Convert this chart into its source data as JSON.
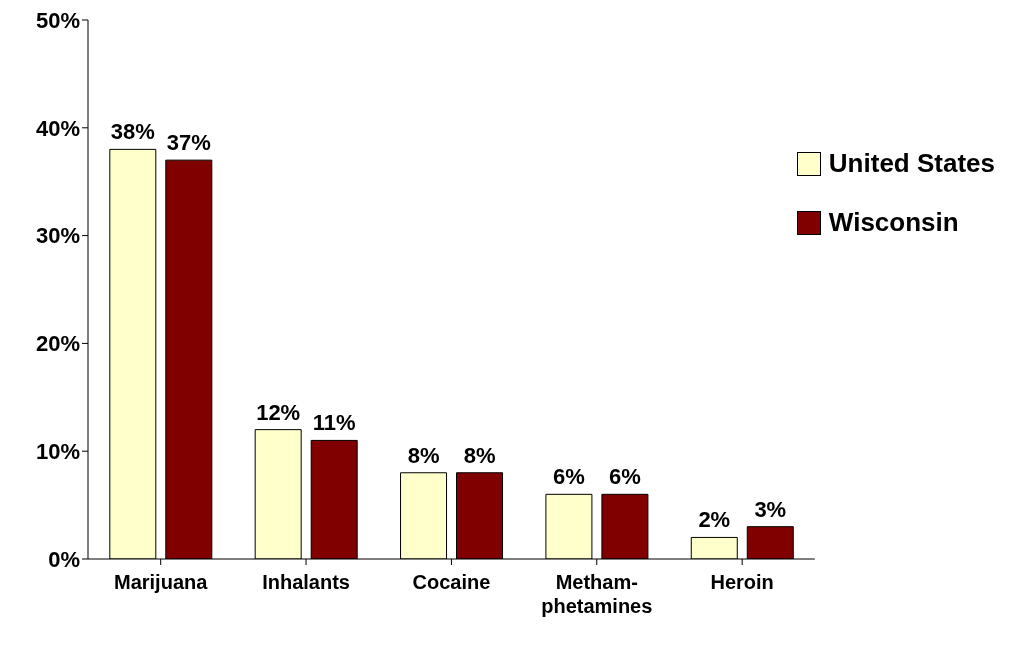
{
  "chart_data": {
    "type": "bar",
    "categories": [
      "Marijuana",
      "Inhalants",
      "Cocaine",
      "Metham-phetamines",
      "Heroin"
    ],
    "series": [
      {
        "name": "United States",
        "color": "#ffffcc",
        "values": [
          38,
          12,
          8,
          6,
          2
        ],
        "value_labels": [
          "38%",
          "12%",
          "8%",
          "6%",
          "2%"
        ]
      },
      {
        "name": "Wisconsin",
        "color": "#800000",
        "values": [
          37,
          11,
          8,
          6,
          3
        ],
        "value_labels": [
          "37%",
          "11%",
          "8%",
          "6%",
          "3%"
        ]
      }
    ],
    "ylim": [
      0,
      50
    ],
    "yticks": [
      {
        "value": 0,
        "label": "0%"
      },
      {
        "value": 10,
        "label": "10%"
      },
      {
        "value": 20,
        "label": "20%"
      },
      {
        "value": 30,
        "label": "30%"
      },
      {
        "value": 40,
        "label": "40%"
      },
      {
        "value": 50,
        "label": "50%"
      }
    ],
    "grid": false,
    "legend": "top right"
  }
}
